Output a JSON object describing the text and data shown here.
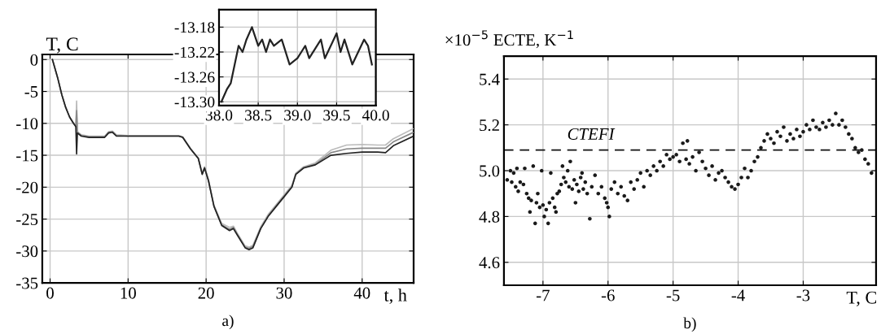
{
  "chart_data": [
    {
      "type": "line",
      "xlabel": "t, h",
      "ylabel": "T, C",
      "xlim": [
        -1,
        46.6
      ],
      "ylim": [
        -35,
        0.8
      ],
      "xticks": [
        0,
        10,
        20,
        30,
        40
      ],
      "yticks": [
        0,
        -5,
        -10,
        -15,
        -20,
        -25,
        -30,
        -35
      ],
      "grid": true,
      "marker": "none",
      "line_style": "solid",
      "annotations": [
        "a)"
      ],
      "x": [
        0.3,
        1,
        1.5,
        2,
        2.5,
        3,
        3.3,
        3.4,
        3.5,
        4,
        5,
        7,
        7.5,
        8,
        8.5,
        10,
        15,
        16.5,
        17,
        18,
        19,
        19.5,
        19.8,
        20.3,
        21,
        22,
        23,
        23.5,
        24,
        25,
        25.5,
        26,
        27,
        28,
        29,
        30,
        31,
        31.5,
        32.5,
        34,
        36,
        38,
        40,
        42,
        43,
        44,
        46.6
      ],
      "series": [
        {
          "color": "#bbbbbb",
          "values": [
            0,
            -3,
            -5.5,
            -7.5,
            -9,
            -10,
            -10.5,
            -6.5,
            -11.3,
            -11.8,
            -12,
            -12,
            -11.3,
            -11.2,
            -11.8,
            -11.9,
            -11.9,
            -11.9,
            -12.1,
            -13.9,
            -15.4,
            -17.8,
            -16.8,
            -18.8,
            -22.8,
            -25.7,
            -26.3,
            -26.1,
            -27.2,
            -29.2,
            -29.4,
            -29.1,
            -26.2,
            -24.2,
            -22.7,
            -21.2,
            -19.7,
            -17.8,
            -16.8,
            -16.2,
            -14.2,
            -13.4,
            -13.3,
            -13.4,
            -13.4,
            -12.4,
            -10.8
          ]
        },
        {
          "color": "#888888",
          "values": [
            0,
            -3,
            -5.5,
            -7.5,
            -9,
            -10,
            -10.5,
            -8,
            -11.4,
            -11.9,
            -12.1,
            -12.1,
            -11.4,
            -11.3,
            -11.9,
            -12,
            -12,
            -12,
            -12.2,
            -14,
            -15.5,
            -17.9,
            -16.9,
            -18.9,
            -22.9,
            -25.9,
            -26.6,
            -26.3,
            -27.4,
            -29.4,
            -29.6,
            -29.3,
            -26.4,
            -24.4,
            -22.9,
            -21.4,
            -19.9,
            -17.9,
            -16.9,
            -16.4,
            -14.6,
            -14,
            -13.9,
            -13.9,
            -13.9,
            -12.9,
            -11.4
          ]
        },
        {
          "color": "#222222",
          "values": [
            0,
            -3,
            -5.5,
            -7.5,
            -9,
            -10,
            -10.5,
            -14.8,
            -11.5,
            -12,
            -12.2,
            -12.2,
            -11.5,
            -11.4,
            -12,
            -12,
            -12,
            -12,
            -12.2,
            -14,
            -15.5,
            -18,
            -17,
            -19,
            -23,
            -26,
            -26.8,
            -26.5,
            -27.5,
            -29.5,
            -29.8,
            -29.5,
            -26.5,
            -24.5,
            -23,
            -21.5,
            -20,
            -18,
            -17,
            -16.5,
            -15,
            -14.7,
            -14.5,
            -14.5,
            -14.6,
            -13.5,
            -12
          ]
        }
      ]
    },
    {
      "type": "line",
      "xlim": [
        38,
        40
      ],
      "ylim": [
        -13.306,
        -13.152
      ],
      "xticks": [
        {
          "value": 38,
          "label": "38.0"
        },
        38.5,
        {
          "value": 39,
          "label": "39.0"
        },
        39.5,
        {
          "value": 40,
          "label": "40.0"
        }
      ],
      "yticks": [
        {
          "value": -13.18,
          "label": "-13.18"
        },
        {
          "value": -13.22,
          "label": "-13.22"
        },
        {
          "value": -13.26,
          "label": "-13.26"
        },
        {
          "value": -13.3,
          "label": "-13.30"
        }
      ],
      "grid": true,
      "marker": "none",
      "line_style": "solid",
      "x": [
        38.03,
        38.1,
        38.15,
        38.2,
        38.25,
        38.3,
        38.35,
        38.42,
        38.5,
        38.55,
        38.6,
        38.65,
        38.7,
        38.8,
        38.9,
        39.0,
        39.05,
        39.1,
        39.15,
        39.3,
        39.35,
        39.5,
        39.55,
        39.6,
        39.7,
        39.85,
        39.9,
        39.95
      ],
      "series": [
        {
          "color": "#222222",
          "values": [
            -13.3,
            -13.28,
            -13.27,
            -13.24,
            -13.21,
            -13.22,
            -13.2,
            -13.18,
            -13.21,
            -13.2,
            -13.22,
            -13.2,
            -13.21,
            -13.2,
            -13.24,
            -13.23,
            -13.22,
            -13.21,
            -13.23,
            -13.2,
            -13.23,
            -13.19,
            -13.22,
            -13.2,
            -13.24,
            -13.2,
            -13.21,
            -13.24
          ]
        }
      ]
    },
    {
      "type": "scatter",
      "xlabel": "T, C",
      "ylabel": "×10$^{−5}$ ECTE, K$^{−1}$",
      "xlim": [
        -7.6,
        -1.88
      ],
      "ylim": [
        4.5,
        5.5
      ],
      "xticks": [
        -7,
        -6,
        -5,
        -4,
        -3
      ],
      "yticks": [
        4.6,
        4.8,
        {
          "value": 5,
          "label": "5.0"
        },
        5.2,
        5.4
      ],
      "grid": true,
      "marker": "circle",
      "annotations": [
        "b)"
      ],
      "ref_lines": [
        {
          "axis": "y",
          "value": 5.09,
          "label": "CTEFI",
          "color": "#111111",
          "line_style": "dashed"
        }
      ],
      "x": [
        -7.55,
        -7.5,
        -7.48,
        -7.45,
        -7.42,
        -7.4,
        -7.38,
        -7.35,
        -7.3,
        -7.28,
        -7.25,
        -7.22,
        -7.2,
        -7.18,
        -7.15,
        -7.12,
        -7.1,
        -7.08,
        -7.05,
        -7.02,
        -7.0,
        -6.98,
        -6.95,
        -6.92,
        -6.9,
        -6.88,
        -6.85,
        -6.82,
        -6.8,
        -6.78,
        -6.75,
        -6.72,
        -6.7,
        -6.68,
        -6.65,
        -6.62,
        -6.6,
        -6.58,
        -6.55,
        -6.52,
        -6.5,
        -6.48,
        -6.45,
        -6.42,
        -6.4,
        -6.38,
        -6.35,
        -6.32,
        -6.28,
        -6.25,
        -6.2,
        -6.15,
        -6.1,
        -6.05,
        -6.02,
        -6.0,
        -5.98,
        -5.95,
        -5.9,
        -5.85,
        -5.8,
        -5.75,
        -5.7,
        -5.65,
        -5.6,
        -5.55,
        -5.5,
        -5.45,
        -5.4,
        -5.35,
        -5.3,
        -5.25,
        -5.2,
        -5.15,
        -5.1,
        -5.05,
        -5.0,
        -4.95,
        -4.9,
        -4.85,
        -4.8,
        -4.78,
        -4.75,
        -4.7,
        -4.65,
        -4.6,
        -4.55,
        -4.5,
        -4.45,
        -4.4,
        -4.35,
        -4.3,
        -4.25,
        -4.2,
        -4.15,
        -4.1,
        -4.05,
        -4.0,
        -3.95,
        -3.9,
        -3.85,
        -3.8,
        -3.75,
        -3.7,
        -3.65,
        -3.6,
        -3.55,
        -3.5,
        -3.45,
        -3.4,
        -3.35,
        -3.3,
        -3.25,
        -3.2,
        -3.15,
        -3.1,
        -3.05,
        -3.0,
        -2.95,
        -2.9,
        -2.85,
        -2.8,
        -2.75,
        -2.7,
        -2.65,
        -2.6,
        -2.55,
        -2.5,
        -2.45,
        -2.4,
        -2.35,
        -2.3,
        -2.25,
        -2.2,
        -2.15,
        -2.1,
        -2.05,
        -2.0,
        -1.95
      ],
      "series": [
        {
          "color": "#1a1a1a",
          "values": [
            4.96,
            5.0,
            4.95,
            4.99,
            4.93,
            5.01,
            4.91,
            4.95,
            4.94,
            5.01,
            4.9,
            4.88,
            4.82,
            4.87,
            5.02,
            4.77,
            4.86,
            4.9,
            4.84,
            5.0,
            4.85,
            4.8,
            4.83,
            4.77,
            4.86,
            4.99,
            4.88,
            4.84,
            4.82,
            4.9,
            4.91,
            4.94,
            5.02,
            4.97,
            4.95,
            5.0,
            4.93,
            5.04,
            4.92,
            4.96,
            4.86,
            4.94,
            4.91,
            4.97,
            4.99,
            4.92,
            4.95,
            4.9,
            4.79,
            4.93,
            4.98,
            4.9,
            4.93,
            4.88,
            4.86,
            4.84,
            4.8,
            4.92,
            4.95,
            4.9,
            4.93,
            4.89,
            4.87,
            4.95,
            4.92,
            4.96,
            4.99,
            4.93,
            5.0,
            4.98,
            5.02,
            5.0,
            5.04,
            5.02,
            5.07,
            5.05,
            5.06,
            5.07,
            5.04,
            5.12,
            5.05,
            5.13,
            5.03,
            5.06,
            5.0,
            5.08,
            5.04,
            5.01,
            4.98,
            5.02,
            4.96,
            4.99,
            5.0,
            4.97,
            4.95,
            4.93,
            4.92,
            4.94,
            4.97,
            5.01,
            4.97,
            5.0,
            5.04,
            5.06,
            5.1,
            5.13,
            5.16,
            5.14,
            5.12,
            5.17,
            5.15,
            5.19,
            5.13,
            5.16,
            5.14,
            5.18,
            5.15,
            5.17,
            5.2,
            5.18,
            5.22,
            5.19,
            5.18,
            5.21,
            5.19,
            5.22,
            5.2,
            5.25,
            5.2,
            5.22,
            5.19,
            5.16,
            5.14,
            5.1,
            5.08,
            5.09,
            5.05,
            5.03,
            4.99
          ]
        }
      ]
    }
  ]
}
